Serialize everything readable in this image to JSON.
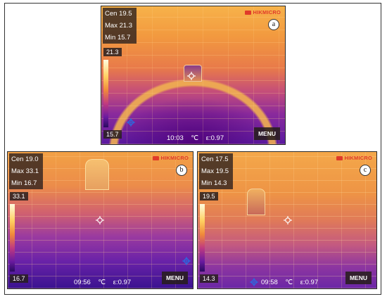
{
  "panels": [
    {
      "label": "a",
      "readout": {
        "cen": "Cen 19.5",
        "max": "Max 21.3",
        "min": "Min 15.7"
      },
      "scale_max": "21.3",
      "scale_min": "15.7",
      "time": "10:03",
      "unit": "℃",
      "emissivity": "ε:0.97",
      "menu": "MENU",
      "brand": "HIKMICRO"
    },
    {
      "label": "b",
      "readout": {
        "cen": "Cen 19.0",
        "max": "Max 33.1",
        "min": "Min 16.7"
      },
      "scale_max": "33.1",
      "scale_min": "16.7",
      "time": "09:56",
      "unit": "℃",
      "emissivity": "ε:0.97",
      "menu": "MENU",
      "brand": "HIKMICRO"
    },
    {
      "label": "c",
      "readout": {
        "cen": "Cen 17.5",
        "max": "Max 19.5",
        "min": "Min 14.3"
      },
      "scale_max": "19.5",
      "scale_min": "14.3",
      "time": "09:58",
      "unit": "℃",
      "emissivity": "ε:0.97",
      "menu": "MENU",
      "brand": "HIKMICRO"
    }
  ],
  "colors": {
    "brand": "#e03a2a",
    "overlay": "#2a1e1e",
    "crosshair": "#ffffff",
    "marker": "#2a6ae0"
  },
  "icons": {
    "crosshair": "crosshair-icon",
    "marker": "blue-target-icon",
    "logo": "hikmicro-logo-icon"
  }
}
